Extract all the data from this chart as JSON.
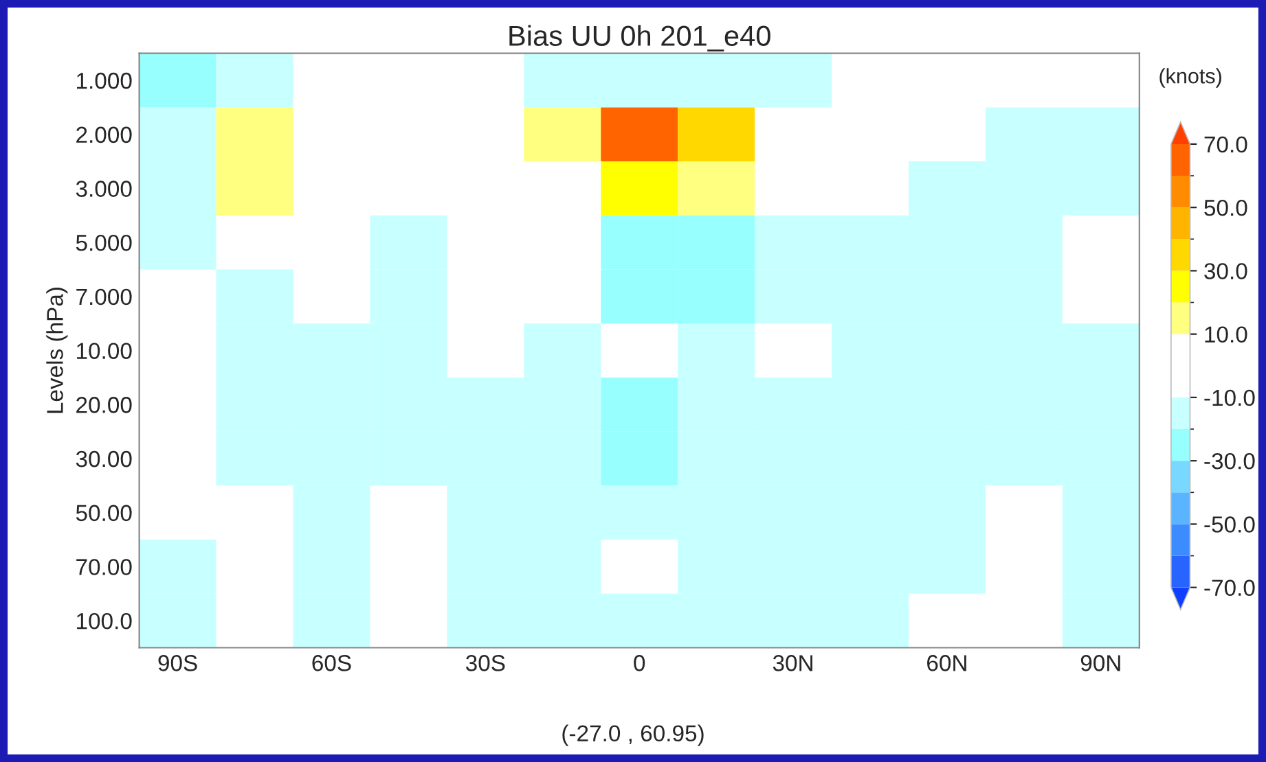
{
  "chart_data": {
    "type": "heatmap",
    "title": "Bias UU 0h 201_e40",
    "ylabel": "Levels (hPa)",
    "clabel": "(knots)",
    "annotations": [
      "(-27.0 , 60.95)"
    ],
    "categories": [
      "90S",
      null,
      "60S",
      null,
      "30S",
      null,
      "0",
      null,
      "30N",
      null,
      "60N",
      null,
      "90N"
    ],
    "y_categories": [
      "1.000",
      "2.000",
      "3.000",
      "5.000",
      "7.000",
      "10.00",
      "20.00",
      "30.00",
      "50.00",
      "70.00",
      "100.0"
    ],
    "cells": [
      [
        -25,
        -15,
        null,
        null,
        null,
        -15,
        -15,
        -15,
        -15,
        null,
        null,
        null,
        null
      ],
      [
        -15,
        15,
        null,
        null,
        null,
        15,
        65,
        35,
        null,
        null,
        null,
        -15,
        -15
      ],
      [
        -15,
        15,
        null,
        null,
        null,
        null,
        25,
        15,
        null,
        null,
        -15,
        -15,
        -15
      ],
      [
        -15,
        null,
        null,
        -15,
        null,
        null,
        -25,
        -25,
        -15,
        -15,
        -15,
        -15,
        null
      ],
      [
        null,
        -15,
        null,
        -15,
        null,
        null,
        -25,
        -25,
        -15,
        -15,
        -15,
        -15,
        null
      ],
      [
        null,
        -15,
        -15,
        -15,
        null,
        -15,
        null,
        -15,
        null,
        -15,
        -15,
        -15,
        -15
      ],
      [
        null,
        -15,
        -15,
        -15,
        -15,
        -15,
        -25,
        -15,
        -15,
        -15,
        -15,
        -15,
        -15
      ],
      [
        null,
        -15,
        -15,
        -15,
        -15,
        -15,
        -25,
        -15,
        -15,
        -15,
        -15,
        -15,
        -15
      ],
      [
        null,
        null,
        -15,
        null,
        -15,
        -15,
        -15,
        -15,
        -15,
        -15,
        -15,
        null,
        -15
      ],
      [
        -15,
        null,
        -15,
        null,
        -15,
        -15,
        null,
        -15,
        -15,
        -15,
        -15,
        null,
        -15
      ],
      [
        -15,
        null,
        -15,
        null,
        -15,
        -15,
        -15,
        -15,
        -15,
        -15,
        null,
        null,
        -15
      ]
    ],
    "clim": [
      -70,
      70
    ],
    "cticks": [
      {
        "value": 70,
        "label": "70.0"
      },
      {
        "value": 50,
        "label": "50.0"
      },
      {
        "value": 30,
        "label": "30.0"
      },
      {
        "value": 10,
        "label": "10.0"
      },
      {
        "value": -10,
        "label": "-10.0"
      },
      {
        "value": -30,
        "label": "-30.0"
      },
      {
        "value": -50,
        "label": "-50.0"
      },
      {
        "value": -70,
        "label": "-70.0"
      }
    ]
  }
}
